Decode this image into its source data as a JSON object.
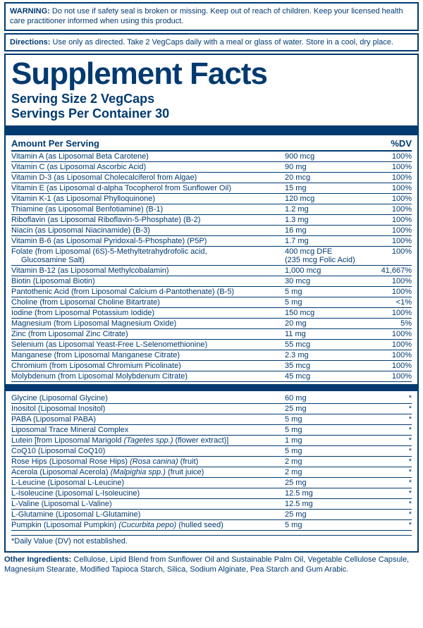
{
  "warning_label": "WARNING:",
  "warning_text": "Do not use if safety seal is broken or missing. Keep out of reach of children. Keep your licensed health care practitioner informed when using this product.",
  "directions_label": "Directions:",
  "directions_text": "Use only as directed. Take 2 VegCaps daily with a meal or glass of water. Store in a cool, dry place.",
  "title": "Supplement Facts",
  "serving_size": "Serving Size 2 VegCaps",
  "servings_per": "Servings Per Container 30",
  "col_amount": "Amount Per Serving",
  "col_dv": "%DV",
  "section1": [
    {
      "n": "Vitamin A (as Liposomal Beta Carotene)",
      "a": "900 mcg",
      "d": "100%"
    },
    {
      "n": "Vitamin C (as Liposomal Ascorbic Acid)",
      "a": "90 mg",
      "d": "100%"
    },
    {
      "n": "Vitamin D-3 (as Liposomal Cholecalciferol from Algae)",
      "a": "20 mcg",
      "d": "100%"
    },
    {
      "n": "Vitamin E (as Liposomal d-alpha Tocopherol from Sunflower Oil)",
      "a": "15 mg",
      "d": "100%"
    },
    {
      "n": "Vitamin K-1 (as Liposomal Phylloquinone)",
      "a": "120 mcg",
      "d": "100%"
    },
    {
      "n": "Thiamine (as Liposomal Benfotiamine) (B-1)",
      "a": "1.2 mg",
      "d": "100%"
    },
    {
      "n": "Riboflavin (as Liposomal Riboflavin-5-Phosphate) (B-2)",
      "a": "1.3 mg",
      "d": "100%"
    },
    {
      "n": "Niacin (as Liposomal Niacinamide) (B-3)",
      "a": "16 mg",
      "d": "100%"
    },
    {
      "n": "Vitamin B-6 (as Liposomal Pyridoxal-5-Phosphate) (P5P)",
      "a": "1.7 mg",
      "d": "100%"
    }
  ],
  "folate": {
    "n": "Folate (from Liposomal (6S)-5-Methyltetrahydrofolic acid,",
    "sub": "Glucosamine Salt)",
    "a1": "400 mcg DFE",
    "a2": "(235 mcg Folic Acid)",
    "d": "100%"
  },
  "section1b": [
    {
      "n": "Vitamin B-12 (as Liposomal Methylcobalamin)",
      "a": "1,000 mcg",
      "d": "41,667%"
    },
    {
      "n": "Biotin (Liposomal  Biotin)",
      "a": "30 mcg",
      "d": "100%"
    },
    {
      "n": "Pantothenic Acid (from Liposomal Calcium d-Pantothenate) (B-5)",
      "a": "5 mg",
      "d": "100%"
    },
    {
      "n": "Choline (from Liposomal Choline Bitartrate)",
      "a": "5 mg",
      "d": "<1%"
    },
    {
      "n": "Iodine (from Liposomal Potassium Iodide)",
      "a": "150 mcg",
      "d": "100%"
    },
    {
      "n": "Magnesium (from Liposomal Magnesium Oxide)",
      "a": "20 mg",
      "d": "5%"
    },
    {
      "n": "Zinc (from Liposomal Zinc Citrate)",
      "a": "11 mg",
      "d": "100%"
    },
    {
      "n": "Selenium (as Liposomal Yeast-Free L-Selenomethionine)",
      "a": "55 mcg",
      "d": "100%"
    },
    {
      "n": "Manganese (from Liposomal Manganese Citrate)",
      "a": "2.3 mg",
      "d": "100%"
    },
    {
      "n": "Chromium (from Liposomal Chromium Picolinate)",
      "a": "35 mcg",
      "d": "100%"
    },
    {
      "n": "Molybdenum (from Liposomal Molybdenum Citrate)",
      "a": "45 mcg",
      "d": "100%"
    }
  ],
  "section2": [
    {
      "n": "Glycine (Liposomal Glycine)",
      "a": "60 mg",
      "d": "*"
    },
    {
      "n": "Inositol (Liposomal Inositol)",
      "a": "25 mg",
      "d": "*"
    },
    {
      "n": "PABA (Liposomal PABA)",
      "a": "5 mg",
      "d": "*"
    },
    {
      "n": "Liposomal Trace Mineral Complex",
      "a": "5 mg",
      "d": "*"
    },
    {
      "n": "Lutein [from Liposomal Marigold <i>(Tagetes spp.)</i> (flower extract)]",
      "a": "1 mg",
      "d": "*"
    },
    {
      "n": "CoQ10 (Liposomal CoQ10)",
      "a": "5 mg",
      "d": "*"
    },
    {
      "n": "Rose Hips (Liposomal Rose Hips) <i>(Rosa canina)</i> (fruit)",
      "a": "2 mg",
      "d": "*"
    },
    {
      "n": "Acerola (Liposomal Acerola) <i>(Malpighia spp.)</i> (fruit juice)",
      "a": "2 mg",
      "d": "*"
    },
    {
      "n": "L-Leucine (Liposomal L-Leucine)",
      "a": "25 mg",
      "d": "*"
    },
    {
      "n": "L-Isoleucine (Liposomal L-Isoleucine)",
      "a": "12.5 mg",
      "d": "*"
    },
    {
      "n": "L-Valine (Liposomal L-Valine)",
      "a": "12.5 mg",
      "d": "*"
    },
    {
      "n": "L-Glutamine (Liposomal L-Glutamine)",
      "a": "25 mg",
      "d": "*"
    },
    {
      "n": "Pumpkin (Liposomal Pumpkin) <i>(Cucurbita pepo)</i> (hulled seed)",
      "a": "5 mg",
      "d": "*"
    }
  ],
  "dv_note": "*Daily Value (DV) not established.",
  "other_label": "Other Ingredients:",
  "other_text": "Cellulose, Lipid Blend from Sunflower Oil and Sustainable Palm Oil, Vegetable Cellulose Capsule, Magnesium Stearate, Modified Tapioca Starch, Silica, Sodium Alginate, Pea Starch and Gum Arabic."
}
